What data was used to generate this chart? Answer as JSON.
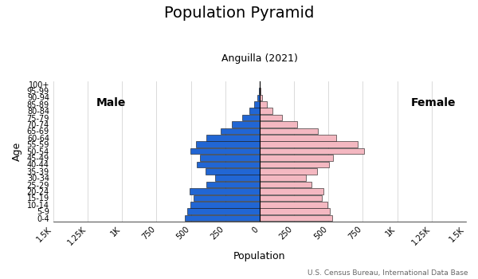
{
  "title": "Population Pyramid",
  "subtitle": "Anguilla (2021)",
  "xlabel": "Population",
  "ylabel": "Age",
  "footnote": "U.S. Census Bureau, International Data Base",
  "age_groups": [
    "0-4",
    "5-9",
    "10-14",
    "15-19",
    "20-24",
    "25-29",
    "30-34",
    "35-39",
    "40-44",
    "45-49",
    "50-54",
    "55-59",
    "60-64",
    "65-69",
    "70-74",
    "75-79",
    "80-84",
    "85-89",
    "90-94",
    "95-99",
    "100+"
  ],
  "male": [
    545,
    525,
    505,
    480,
    510,
    385,
    325,
    395,
    455,
    435,
    505,
    465,
    385,
    285,
    200,
    125,
    75,
    38,
    14,
    5,
    2
  ],
  "female": [
    530,
    510,
    490,
    455,
    465,
    375,
    335,
    420,
    505,
    535,
    760,
    710,
    555,
    425,
    270,
    165,
    95,
    50,
    18,
    5,
    2
  ],
  "male_color": "#2166d4",
  "female_color": "#f4b8c1",
  "bar_edge_color": "#111111",
  "male_label": "Male",
  "female_label": "Female",
  "xlim": 1500,
  "background_color": "#ffffff",
  "title_fontsize": 14,
  "subtitle_fontsize": 9,
  "ylabel_fontsize": 9,
  "xlabel_fontsize": 9,
  "tick_fontsize": 7,
  "label_fontsize": 10
}
